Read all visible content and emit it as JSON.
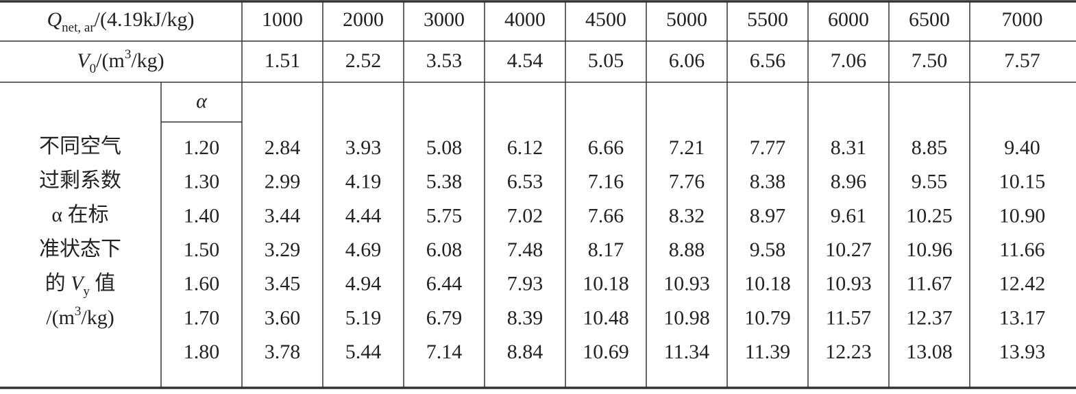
{
  "table": {
    "header": {
      "symbol": "Q",
      "subscript": "net, ar",
      "unit": "/(4.19kJ/kg)",
      "values": [
        "1000",
        "2000",
        "3000",
        "4000",
        "4500",
        "5000",
        "5500",
        "6000",
        "6500",
        "7000"
      ]
    },
    "v0": {
      "symbol": "V",
      "subscript": "0",
      "pre": "/(m",
      "sup": "3",
      "post": "/kg)",
      "values": [
        "1.51",
        "2.52",
        "3.53",
        "4.54",
        "5.05",
        "6.06",
        "6.56",
        "7.06",
        "7.50",
        "7.57"
      ]
    },
    "alpha_label": "α",
    "group_label": [
      "不同空气",
      "过剩系数",
      "α 在标",
      "准状态下",
      {
        "pre": "的 ",
        "symbol": "V",
        "subscript": "y",
        "post": " 值"
      },
      {
        "pre": "/(m",
        "sup": "3",
        "post": "/kg)"
      }
    ],
    "rows": [
      {
        "alpha": "1.20",
        "values": [
          "2.84",
          "3.93",
          "5.08",
          "6.12",
          "6.66",
          "7.21",
          "7.77",
          "8.31",
          "8.85",
          "9.40"
        ]
      },
      {
        "alpha": "1.30",
        "values": [
          "2.99",
          "4.19",
          "5.38",
          "6.53",
          "7.16",
          "7.76",
          "8.38",
          "8.96",
          "9.55",
          "10.15"
        ]
      },
      {
        "alpha": "1.40",
        "values": [
          "3.44",
          "4.44",
          "5.75",
          "7.02",
          "7.66",
          "8.32",
          "8.97",
          "9.61",
          "10.25",
          "10.90"
        ]
      },
      {
        "alpha": "1.50",
        "values": [
          "3.29",
          "4.69",
          "6.08",
          "7.48",
          "8.17",
          "8.88",
          "9.58",
          "10.27",
          "10.96",
          "11.66"
        ]
      },
      {
        "alpha": "1.60",
        "values": [
          "3.45",
          "4.94",
          "6.44",
          "7.93",
          "10.18",
          "10.93",
          "10.18",
          "10.93",
          "11.67",
          "12.42"
        ]
      },
      {
        "alpha": "1.70",
        "values": [
          "3.60",
          "5.19",
          "6.79",
          "8.39",
          "10.48",
          "10.98",
          "10.79",
          "11.57",
          "12.37",
          "13.17"
        ]
      },
      {
        "alpha": "1.80",
        "values": [
          "3.78",
          "5.44",
          "7.14",
          "8.84",
          "10.69",
          "11.34",
          "11.39",
          "12.23",
          "13.08",
          "13.93"
        ]
      }
    ]
  }
}
